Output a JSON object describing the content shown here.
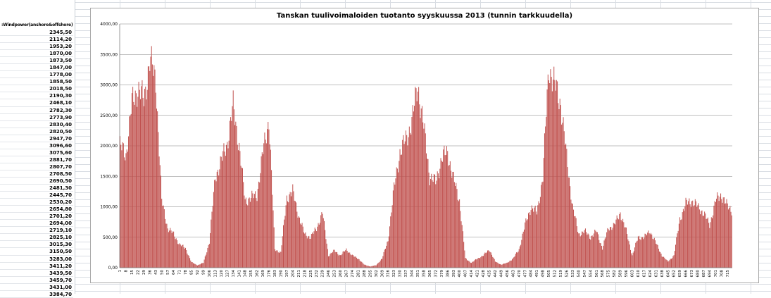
{
  "sheet": {
    "column_header": ":Windpower(anshore&offshore)",
    "cells": [
      "2345,50",
      "2114,20",
      "1953,20",
      "1870,00",
      "1873,50",
      "1847,00",
      "1778,00",
      "1858,50",
      "2018,50",
      "2190,30",
      "2468,10",
      "2782,30",
      "2773,90",
      "2830,40",
      "2820,50",
      "2947,70",
      "3096,60",
      "3075,60",
      "2881,70",
      "2807,70",
      "2708,50",
      "2690,50",
      "2481,30",
      "2445,70",
      "2530,20",
      "2654,80",
      "2701,20",
      "2694,00",
      "2719,10",
      "2825,10",
      "3015,30",
      "3150,50",
      "3283,00",
      "3411,20",
      "3439,50",
      "3459,70",
      "3431,00",
      "3384,70"
    ]
  },
  "colors": {
    "bar": "#c0504d",
    "gridline": "#808080",
    "axis": "#808080"
  },
  "chart_data": {
    "type": "bar",
    "title": "Tanskan tuulivoimaloiden tuotanto  syyskuussa 2013 (tunnin  tarkkuudella)",
    "xlabel": "",
    "ylabel": "",
    "ylim": [
      0,
      4000
    ],
    "yticks": [
      0,
      500,
      1000,
      1500,
      2000,
      2500,
      3000,
      3500,
      4000
    ],
    "ytick_labels": [
      "0,00",
      "500,00",
      "1000,00",
      "1500,00",
      "2000,00",
      "2500,00",
      "3000,00",
      "3500,00",
      "4000,00"
    ],
    "x_count": 720,
    "x_tick_start": 1,
    "x_tick_step": 7,
    "grid": true,
    "legend": "none",
    "profile_hours": [
      1,
      8,
      15,
      22,
      29,
      36,
      43,
      50,
      57,
      64,
      71,
      78,
      85,
      92,
      99,
      106,
      113,
      120,
      127,
      134,
      141,
      148,
      155,
      162,
      169,
      176,
      183,
      190,
      197,
      204,
      211,
      218,
      225,
      232,
      239,
      246,
      253,
      260,
      267,
      274,
      281,
      288,
      295,
      302,
      309,
      316,
      323,
      330,
      337,
      344,
      351,
      358,
      365,
      372,
      379,
      386,
      393,
      400,
      407,
      414,
      421,
      428,
      435,
      442,
      449,
      456,
      463,
      470,
      477,
      484,
      491,
      498,
      505,
      512,
      519,
      526,
      533,
      540,
      547,
      554,
      561,
      568,
      575,
      582,
      589,
      596,
      603,
      610,
      617,
      624,
      631,
      638,
      645,
      652,
      659,
      666,
      673,
      680,
      687,
      694,
      701,
      708,
      715,
      720
    ],
    "profile_values": [
      2000,
      1850,
      2700,
      2950,
      2750,
      3400,
      3100,
      1100,
      650,
      550,
      380,
      320,
      90,
      40,
      80,
      420,
      1500,
      1750,
      2050,
      2650,
      2000,
      1100,
      1150,
      1200,
      1900,
      2450,
      300,
      250,
      1150,
      1250,
      850,
      550,
      500,
      650,
      900,
      200,
      280,
      200,
      300,
      200,
      150,
      50,
      20,
      40,
      150,
      450,
      1300,
      1900,
      2100,
      2400,
      3000,
      2300,
      1500,
      1400,
      1800,
      1900,
      1450,
      1100,
      150,
      80,
      150,
      200,
      300,
      100,
      50,
      80,
      150,
      300,
      700,
      1000,
      900,
      1500,
      3300,
      3000,
      2700,
      1800,
      1000,
      550,
      600,
      500,
      600,
      320,
      650,
      700,
      900,
      600,
      200,
      500,
      500,
      600,
      400,
      200,
      100,
      200,
      800,
      1050,
      1100,
      1000,
      900,
      700,
      1100,
      1200,
      1000,
      950
    ]
  }
}
